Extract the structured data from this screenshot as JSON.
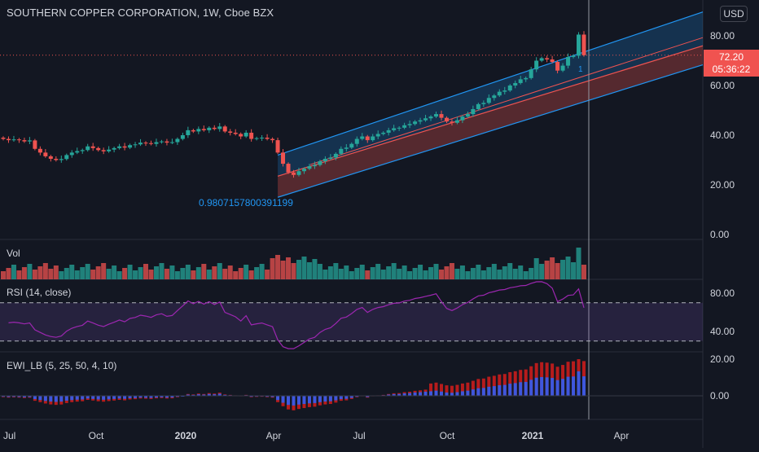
{
  "header": {
    "title": "SOUTHERN COPPER CORPORATION, 1W, Cboe BZX",
    "currency": "USD"
  },
  "price_axis": {
    "ticks": [
      "80.00",
      "60.00",
      "40.00",
      "20.00",
      "0.00"
    ]
  },
  "last_price": {
    "value": "72.20",
    "countdown": "05:36:22",
    "color": "#f05350"
  },
  "regression_channel": {
    "label": "0.9807157800391199",
    "marker": "1",
    "color": "#2196f3"
  },
  "panes": {
    "volume": {
      "title": "Vol"
    },
    "rsi": {
      "title": "RSI (14, close)",
      "ticks": [
        "80.00",
        "40.00"
      ]
    },
    "ewi": {
      "title": "EWI_LB (5, 25, 50, 4, 10)",
      "ticks": [
        "20.00",
        "0.00"
      ]
    }
  },
  "time_axis": [
    "Jul",
    "Oct",
    "2020",
    "Apr",
    "Jul",
    "Oct",
    "2021",
    "Apr"
  ],
  "colors": {
    "up": "#26a69a",
    "down": "#ef5350",
    "rsi": "#9c27b0",
    "channel": "#2196f3",
    "ewi_blue": "#2962ff",
    "ewi_red": "#b71c1c"
  },
  "chart_data": {
    "type": "candlestick",
    "title": "SOUTHERN COPPER CORPORATION, 1W, Cboe BZX",
    "ylim": [
      0,
      90
    ],
    "weekly_close": [
      38.5,
      38.0,
      38.3,
      38.0,
      37.5,
      37.9,
      34.5,
      33.0,
      31.5,
      30.5,
      30.0,
      30.4,
      32.0,
      33.0,
      33.6,
      34.0,
      35.5,
      34.8,
      34.0,
      33.5,
      34.2,
      34.8,
      35.5,
      35.0,
      36.0,
      36.3,
      37.0,
      36.8,
      36.5,
      37.2,
      37.5,
      37.0,
      37.2,
      38.5,
      40.0,
      42.0,
      41.5,
      42.5,
      42.0,
      43.0,
      42.5,
      43.5,
      41.5,
      41.0,
      40.5,
      39.5,
      41.0,
      38.5,
      38.8,
      39.0,
      38.5,
      38.0,
      33.0,
      28.5,
      25.0,
      24.0,
      25.5,
      26.5,
      27.5,
      28.0,
      29.5,
      30.5,
      31.0,
      32.5,
      34.5,
      35.0,
      36.5,
      38.5,
      39.5,
      38.0,
      39.5,
      40.5,
      41.0,
      42.0,
      42.8,
      43.0,
      44.0,
      44.5,
      45.5,
      46.0,
      46.8,
      47.5,
      48.5,
      47.0,
      45.5,
      45.0,
      46.0,
      47.5,
      48.5,
      50.5,
      52.5,
      53.0,
      55.0,
      56.0,
      57.5,
      58.0,
      60.0,
      61.0,
      62.5,
      63.0,
      66.5,
      70.0,
      71.0,
      70.5,
      69.5,
      66.0,
      68.0,
      71.5,
      72.0,
      80.5,
      72.2
    ],
    "weekly_open": [
      39.0,
      38.5,
      38.0,
      38.3,
      38.0,
      37.5,
      37.9,
      34.5,
      33.0,
      31.5,
      30.5,
      30.0,
      30.4,
      32.0,
      33.0,
      33.6,
      34.0,
      35.5,
      34.8,
      34.0,
      33.5,
      34.2,
      34.8,
      35.5,
      35.0,
      36.0,
      36.3,
      37.0,
      36.8,
      36.5,
      37.2,
      37.5,
      37.0,
      37.2,
      38.5,
      40.0,
      42.0,
      41.5,
      42.5,
      42.0,
      43.0,
      42.5,
      43.5,
      41.5,
      41.0,
      40.5,
      39.5,
      41.0,
      38.5,
      38.8,
      39.0,
      38.5,
      38.0,
      33.0,
      28.5,
      25.0,
      24.0,
      25.5,
      26.5,
      27.5,
      28.0,
      29.5,
      30.5,
      31.0,
      32.5,
      34.5,
      35.0,
      36.5,
      38.5,
      39.5,
      38.0,
      39.5,
      40.5,
      41.0,
      42.0,
      42.8,
      43.0,
      44.0,
      44.5,
      45.5,
      46.0,
      46.8,
      47.5,
      48.5,
      47.0,
      45.5,
      45.0,
      46.0,
      47.5,
      48.5,
      50.5,
      52.5,
      53.0,
      55.0,
      56.0,
      57.5,
      58.0,
      60.0,
      61.0,
      62.5,
      63.0,
      66.5,
      70.0,
      71.0,
      70.5,
      69.5,
      66.0,
      68.0,
      71.5,
      72.0,
      80.5
    ],
    "rsi": {
      "ylim": [
        20,
        95
      ],
      "bands": [
        70,
        30
      ],
      "start": 50,
      "end": 62
    },
    "regression_label": "0.9807157800391199"
  }
}
